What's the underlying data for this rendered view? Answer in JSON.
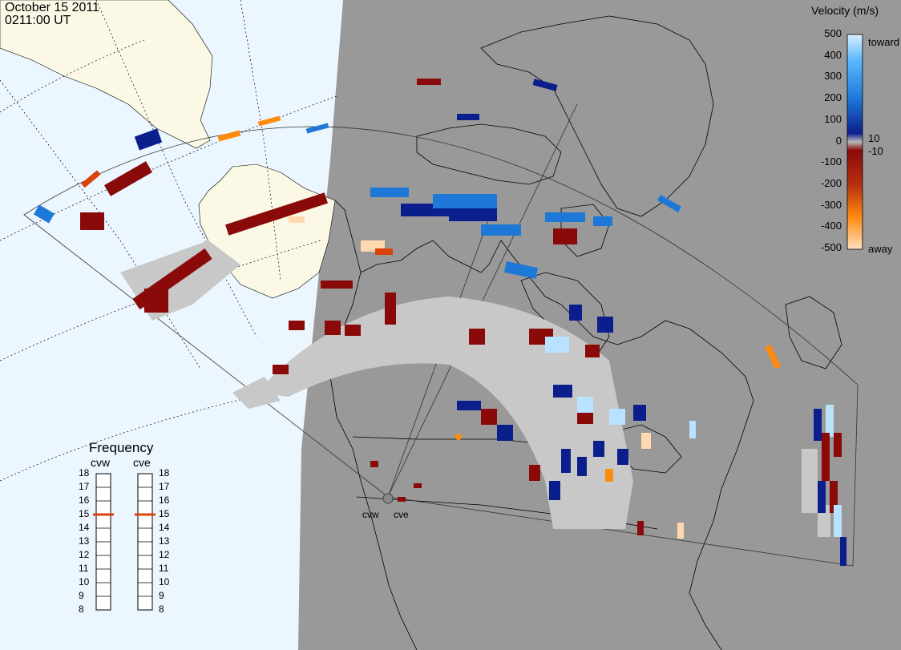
{
  "header": {
    "date": "October 15 2011",
    "time": "0211:00 UT"
  },
  "colors": {
    "day_side": "#ebf6ff",
    "night_side": "#999999",
    "land": "#fbf9e6",
    "ground_scatter": "#c8c8c8",
    "toward_light": "#b8e2ff",
    "toward_mid": "#1e78d8",
    "toward_dark": "#0b1f8c",
    "away_dark": "#8a0a0a",
    "away_mid": "#d9420a",
    "away_light": "#ffd8b0"
  },
  "velocity_scale": {
    "title": "Velocity (m/s)",
    "ticks": [
      "500",
      "400",
      "300",
      "200",
      "100",
      "0",
      "-100",
      "-200",
      "-300",
      "-400",
      "-500"
    ],
    "toward_label": "toward",
    "away_label": "away",
    "plus_ten": "10",
    "minus_ten": "-10"
  },
  "frequency_panel": {
    "title": "Frequency",
    "radar_left": "cvw",
    "radar_right": "cve",
    "levels": [
      "18",
      "17",
      "16",
      "15",
      "14",
      "13",
      "12",
      "11",
      "10",
      "9",
      "8"
    ],
    "cvw_mhz": 15,
    "cve_mhz": 15
  },
  "radars": {
    "west": "cvw",
    "east": "cve"
  }
}
